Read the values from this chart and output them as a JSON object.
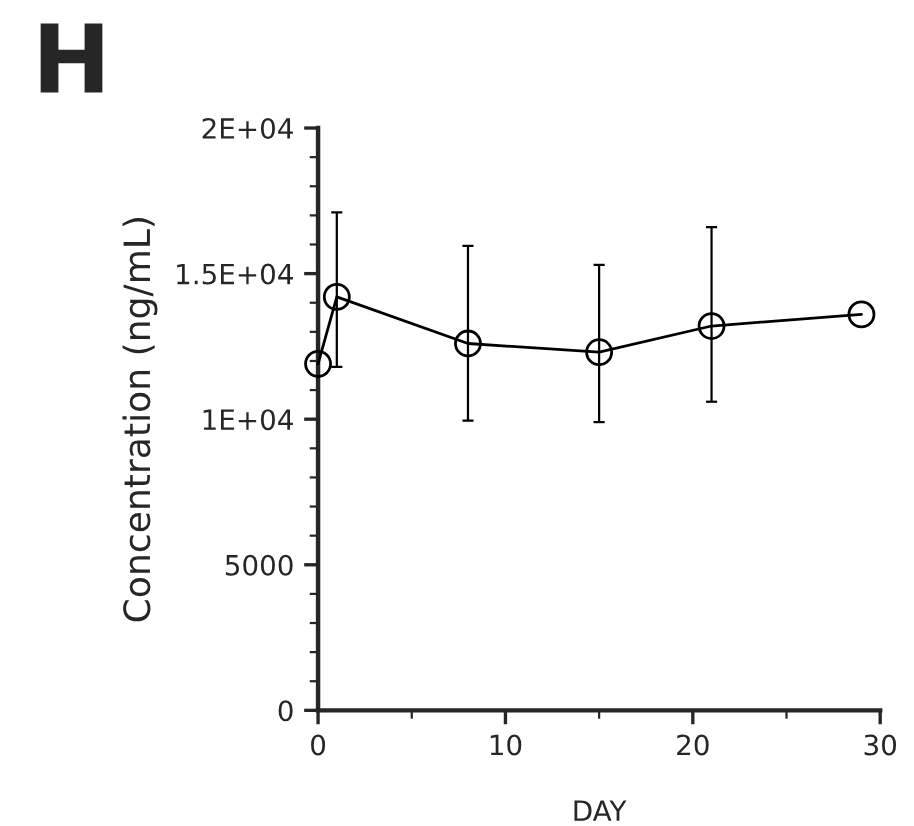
{
  "chart_data": {
    "type": "line",
    "title": "H",
    "xlabel": "DAY",
    "ylabel": "Concentration (ng/mL)",
    "x": [
      0,
      1,
      8,
      15,
      21,
      29
    ],
    "series": [
      {
        "color": "#000000",
        "values": [
          11900,
          14200,
          12600,
          12300,
          13200,
          13600
        ],
        "errors": [
          null,
          [
            11800,
            17100
          ],
          [
            9950,
            15950
          ],
          [
            9900,
            15300
          ],
          [
            10600,
            16600
          ],
          null
        ]
      }
    ],
    "xlim": [
      0,
      30
    ],
    "xticks": [
      0,
      10,
      20,
      30
    ],
    "ylim": [
      0,
      20000
    ],
    "yticks": [
      0,
      5000,
      {
        "value": 10000,
        "label": "1E+04"
      },
      {
        "value": 15000,
        "label": "1.5E+04"
      },
      {
        "value": 20000,
        "label": "2E+04"
      }
    ],
    "marker": "circle",
    "line_style": "solid",
    "grid": false,
    "legend": false
  }
}
